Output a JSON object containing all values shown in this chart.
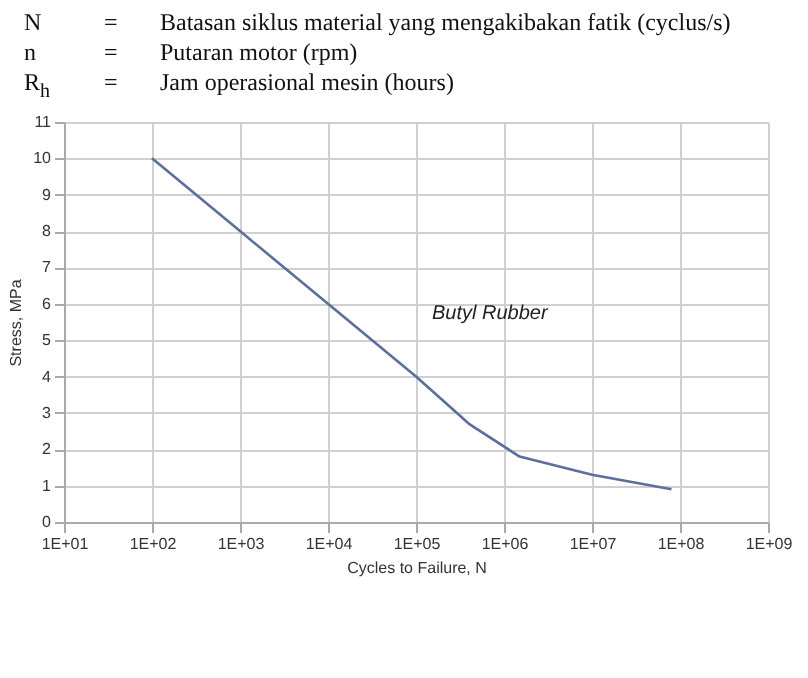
{
  "chart_data": {
    "type": "line",
    "xlabel": "Cycles to Failure, N",
    "ylabel": "Stress, MPa",
    "x": [
      100,
      1000,
      10000,
      100000,
      400000,
      1500000,
      10000000,
      80000000
    ],
    "series": [
      {
        "name": "Butyl Rubber",
        "color": "#5b6e9c",
        "values": [
          10,
          8,
          6,
          4,
          2.7,
          1.8,
          1.3,
          0.9
        ]
      }
    ],
    "log": "x",
    "xlim": [
      10,
      1000000000
    ],
    "xticks": [
      {
        "value": 10,
        "label": "1E+01"
      },
      {
        "value": 100,
        "label": "1E+02"
      },
      {
        "value": 1000,
        "label": "1E+03"
      },
      {
        "value": 10000,
        "label": "1E+04"
      },
      {
        "value": 100000,
        "label": "1E+05"
      },
      {
        "value": 1000000,
        "label": "1E+06"
      },
      {
        "value": 10000000,
        "label": "1E+07"
      },
      {
        "value": 100000000,
        "label": "1E+08"
      },
      {
        "value": 1000000000,
        "label": "1E+09"
      }
    ],
    "ylim": [
      0,
      11
    ],
    "yticks": [
      0,
      1,
      2,
      3,
      4,
      5,
      6,
      7,
      8,
      9,
      10,
      11
    ],
    "grid": true,
    "marker": "none",
    "legend": false,
    "annotations": [
      "N = Batasan siklus material yang mengakibakan fatik (cyclus/s)",
      "n = Putaran motor (rpm)",
      "R$_{h}$ = Jam operasional mesin (hours)"
    ]
  }
}
